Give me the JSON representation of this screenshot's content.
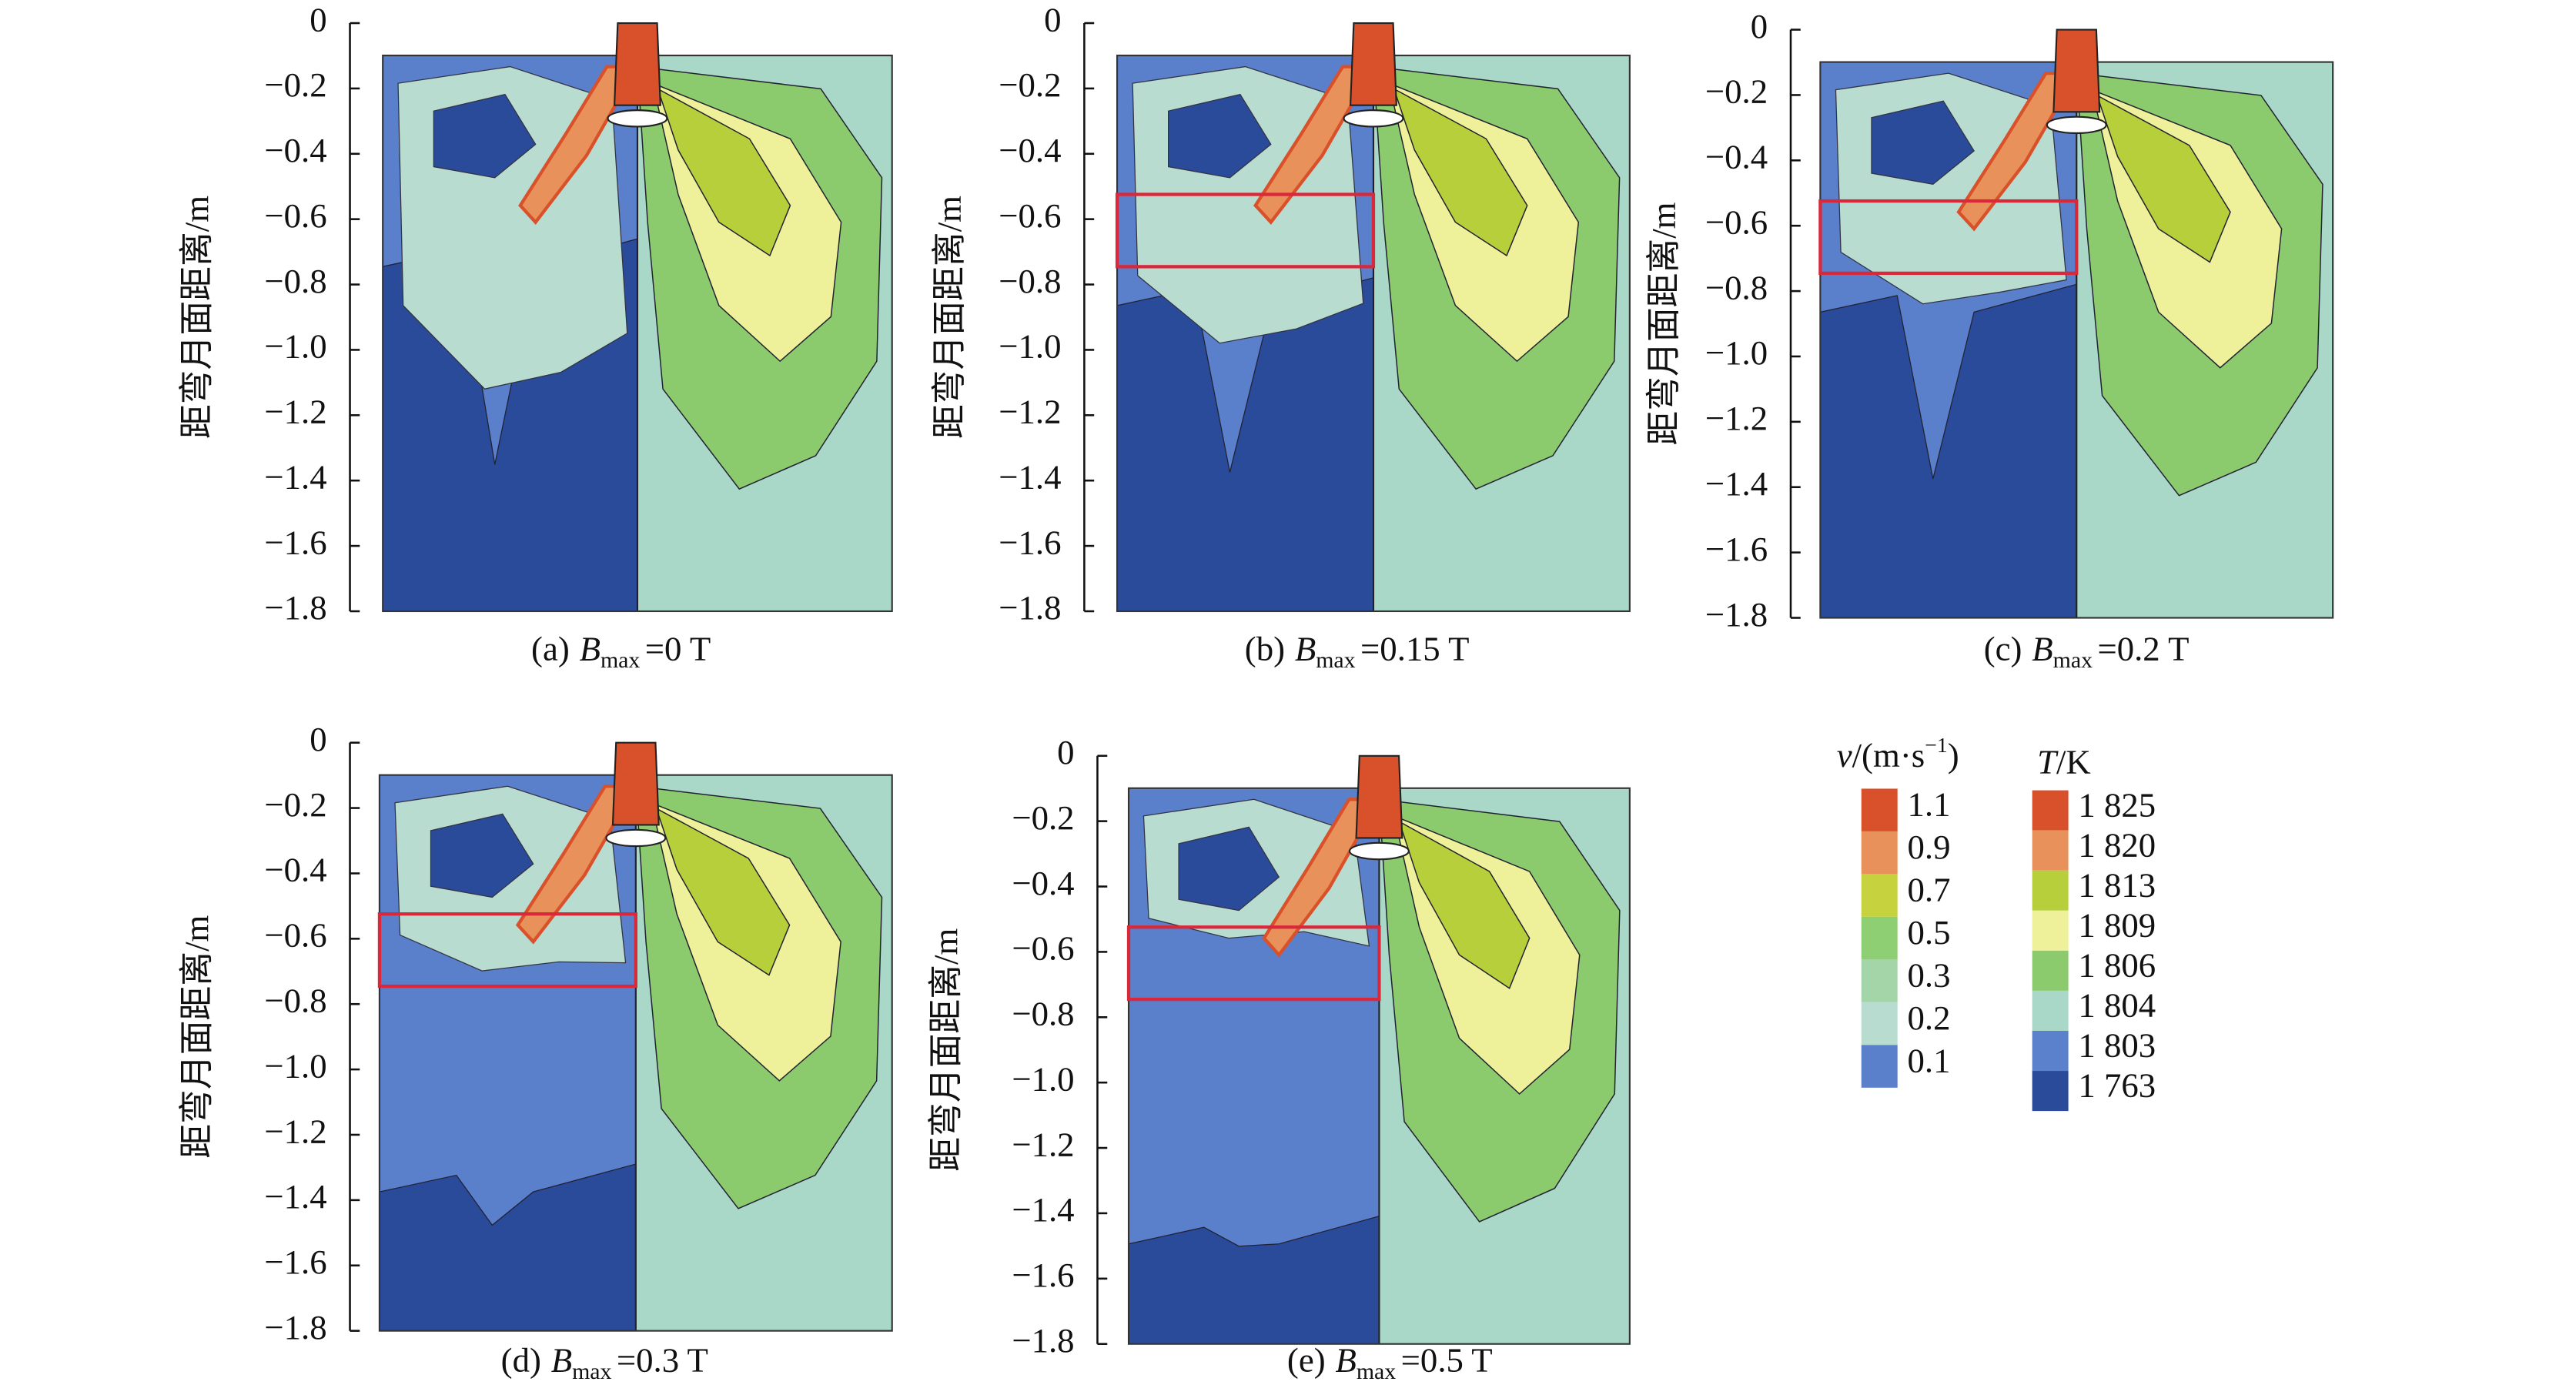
{
  "chart_data": [
    {
      "type": "contour",
      "caption": {
        "prefix": "(a)",
        "symbol": "B",
        "subscript": "max",
        "value": "=0 T"
      },
      "ylabel": "距弯月面距离/m",
      "ylim": [
        -1.8,
        0
      ],
      "yticks": [
        0,
        {
          "value": -0.2,
          "label": "−0.2"
        },
        {
          "value": -0.4,
          "label": "−0.4"
        },
        {
          "value": -0.6,
          "label": "−0.6"
        },
        {
          "value": -0.8,
          "label": "−0.8"
        },
        {
          "value": -1.0,
          "label": "−1.0"
        },
        {
          "value": -1.2,
          "label": "−1.2"
        },
        {
          "value": -1.4,
          "label": "−1.4"
        },
        {
          "value": -1.6,
          "label": "−1.6"
        },
        {
          "value": -1.8,
          "label": "−1.8"
        }
      ]
    },
    {
      "type": "contour",
      "caption": {
        "prefix": "(b)",
        "symbol": "B",
        "subscript": "max",
        "value": "=0.15 T"
      },
      "ylabel": "距弯月面距离/m",
      "ylim": [
        -1.8,
        0
      ],
      "yticks": [
        0,
        {
          "value": -0.2,
          "label": "−0.2"
        },
        {
          "value": -0.4,
          "label": "−0.4"
        },
        {
          "value": -0.6,
          "label": "−0.6"
        },
        {
          "value": -0.8,
          "label": "−0.8"
        },
        {
          "value": -1.0,
          "label": "−1.0"
        },
        {
          "value": -1.2,
          "label": "−1.2"
        },
        {
          "value": -1.4,
          "label": "−1.4"
        },
        {
          "value": -1.6,
          "label": "−1.6"
        },
        {
          "value": -1.8,
          "label": "−1.8"
        }
      ]
    },
    {
      "type": "contour",
      "caption": {
        "prefix": "(c)",
        "symbol": "B",
        "subscript": "max",
        "value": "=0.2 T"
      },
      "ylabel": "距弯月面距离/m",
      "ylim": [
        -1.8,
        0
      ],
      "yticks": [
        0,
        {
          "value": -0.2,
          "label": "−0.2"
        },
        {
          "value": -0.4,
          "label": "−0.4"
        },
        {
          "value": -0.6,
          "label": "−0.6"
        },
        {
          "value": -0.8,
          "label": "−0.8"
        },
        {
          "value": -1.0,
          "label": "−1.0"
        },
        {
          "value": -1.2,
          "label": "−1.2"
        },
        {
          "value": -1.4,
          "label": "−1.4"
        },
        {
          "value": -1.6,
          "label": "−1.6"
        },
        {
          "value": -1.8,
          "label": "−1.8"
        }
      ]
    },
    {
      "type": "contour",
      "caption": {
        "prefix": "(d)",
        "symbol": "B",
        "subscript": "max",
        "value": "=0.3 T"
      },
      "ylabel": "距弯月面距离/m",
      "ylim": [
        -1.8,
        0
      ],
      "yticks": [
        0,
        {
          "value": -0.2,
          "label": "−0.2"
        },
        {
          "value": -0.4,
          "label": "−0.4"
        },
        {
          "value": -0.6,
          "label": "−0.6"
        },
        {
          "value": -0.8,
          "label": "−0.8"
        },
        {
          "value": -1.0,
          "label": "−1.0"
        },
        {
          "value": -1.2,
          "label": "−1.2"
        },
        {
          "value": -1.4,
          "label": "−1.4"
        },
        {
          "value": -1.6,
          "label": "−1.6"
        },
        {
          "value": -1.8,
          "label": "−1.8"
        }
      ]
    },
    {
      "type": "contour",
      "caption": {
        "prefix": "(e)",
        "symbol": "B",
        "subscript": "max",
        "value": "=0.5 T"
      },
      "ylabel": "距弯月面距离/m",
      "ylim": [
        -1.8,
        0
      ],
      "yticks": [
        0,
        {
          "value": -0.2,
          "label": "−0.2"
        },
        {
          "value": -0.4,
          "label": "−0.4"
        },
        {
          "value": -0.6,
          "label": "−0.6"
        },
        {
          "value": -0.8,
          "label": "−0.8"
        },
        {
          "value": -1.0,
          "label": "−1.0"
        },
        {
          "value": -1.2,
          "label": "−1.2"
        },
        {
          "value": -1.4,
          "label": "−1.4"
        },
        {
          "value": -1.6,
          "label": "−1.6"
        },
        {
          "value": -1.8,
          "label": "−1.8"
        }
      ]
    }
  ],
  "legends": [
    {
      "title": {
        "symbol": "v",
        "unit": "/(m·s",
        "power": "−1",
        "close": ")"
      },
      "labels": [
        1.1,
        0.9,
        0.7,
        0.5,
        0.3,
        0.2,
        0.1
      ],
      "colors": [
        "#d9512a",
        "#e9915a",
        "#c6d33e",
        "#8fcf73",
        "#a3d5a8",
        "#b8dccf",
        "#5a7fcb"
      ]
    },
    {
      "title": {
        "symbol": "T",
        "unit": "/K"
      },
      "labels": [
        {
          "value": 1825,
          "label": "1 825"
        },
        {
          "value": 1820,
          "label": "1 820"
        },
        {
          "value": 1813,
          "label": "1 813"
        },
        {
          "value": 1809,
          "label": "1 809"
        },
        {
          "value": 1806,
          "label": "1 806"
        },
        {
          "value": 1804,
          "label": "1 804"
        },
        {
          "value": 1803,
          "label": "1 803"
        },
        {
          "value": 1763,
          "label": "1 763"
        }
      ],
      "colors": [
        "#d9512a",
        "#e9915a",
        "#b7cf3a",
        "#eef09a",
        "#8cca6e",
        "#a9d8c8",
        "#5b80cc",
        "#2a4a9a"
      ]
    }
  ]
}
